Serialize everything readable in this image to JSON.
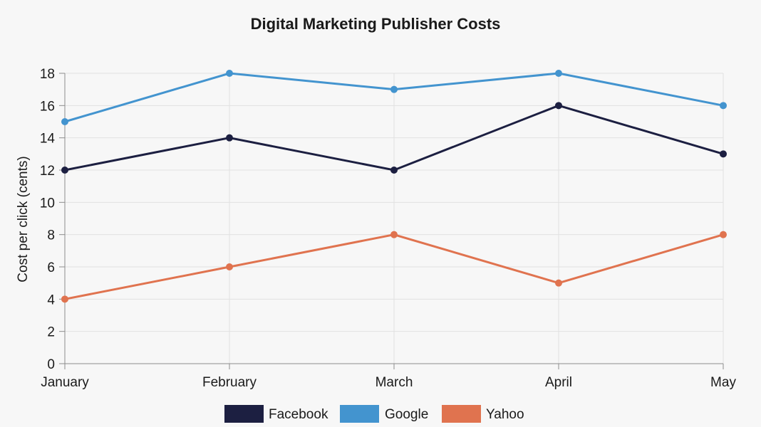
{
  "chart_data": {
    "type": "line",
    "title": "Digital Marketing Publisher Costs",
    "xlabel": "",
    "ylabel": "Cost per click (cents)",
    "categories": [
      "January",
      "February",
      "March",
      "April",
      "May"
    ],
    "ylim": [
      0,
      18
    ],
    "yticks": [
      0,
      2,
      4,
      6,
      8,
      10,
      12,
      14,
      16,
      18
    ],
    "grid": true,
    "legend_position": "bottom",
    "series": [
      {
        "name": "Facebook",
        "color": "#1c1f41",
        "values": [
          12,
          14,
          12,
          16,
          13
        ]
      },
      {
        "name": "Google",
        "color": "#4394cf",
        "values": [
          15,
          18,
          17,
          18,
          16
        ]
      },
      {
        "name": "Yahoo",
        "color": "#e0734f",
        "values": [
          4,
          6,
          8,
          5,
          8
        ]
      }
    ]
  }
}
